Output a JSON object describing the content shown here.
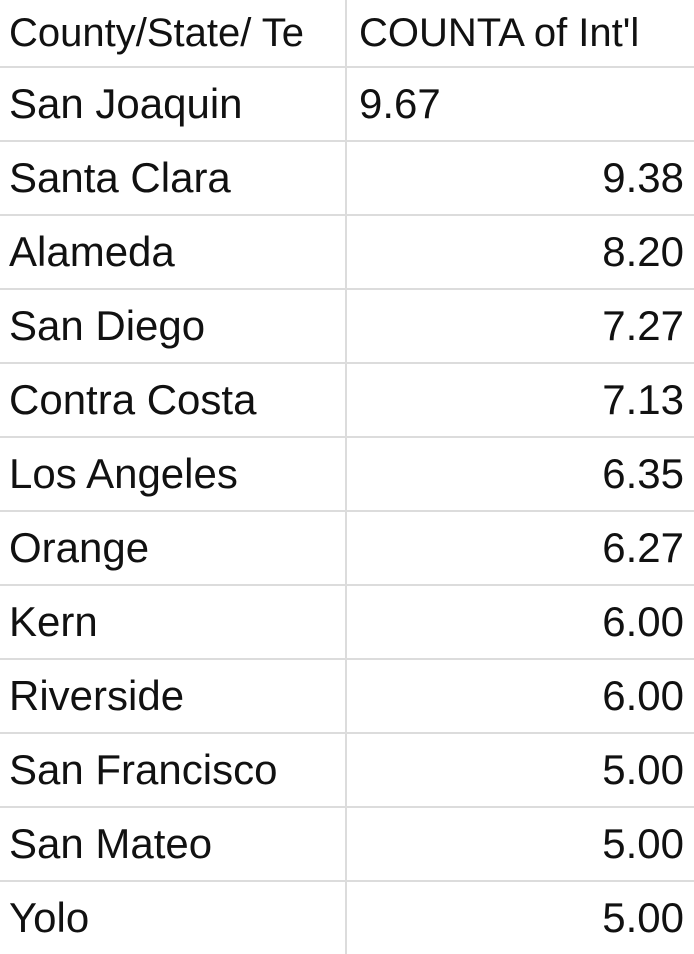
{
  "table": {
    "headers": [
      "County/State/ Te",
      "COUNTA of Int'l"
    ],
    "rows": [
      {
        "county": "San Joaquin",
        "value": "9.67"
      },
      {
        "county": "Santa Clara",
        "value": "9.38"
      },
      {
        "county": "Alameda",
        "value": "8.20"
      },
      {
        "county": "San Diego",
        "value": "7.27"
      },
      {
        "county": "Contra Costa",
        "value": "7.13"
      },
      {
        "county": "Los Angeles",
        "value": "6.35"
      },
      {
        "county": "Orange",
        "value": "6.27"
      },
      {
        "county": "Kern",
        "value": "6.00"
      },
      {
        "county": "Riverside",
        "value": "6.00"
      },
      {
        "county": "San Francisco",
        "value": "5.00"
      },
      {
        "county": "San Mateo",
        "value": "5.00"
      },
      {
        "county": "Yolo",
        "value": "5.00"
      }
    ]
  },
  "colors": {
    "text": "#111111",
    "gridline": "#dcdcdc",
    "background": "#ffffff"
  }
}
